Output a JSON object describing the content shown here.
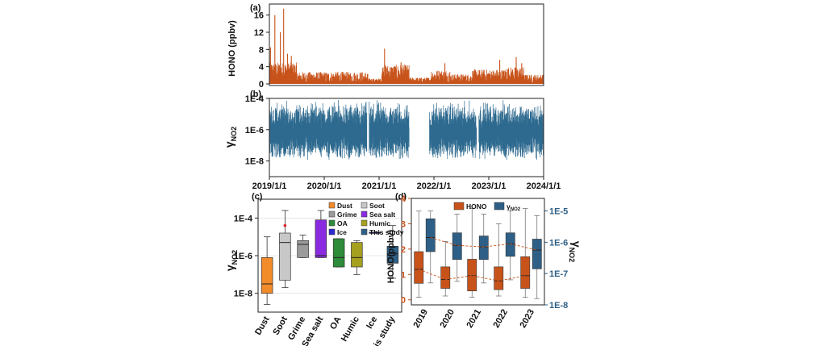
{
  "chart_data": [
    {
      "id": "a",
      "type": "line",
      "panel_label": "(a)",
      "ylabel": "HONO (ppbv)",
      "ylim": [
        0,
        18
      ],
      "yticks": [
        "0",
        "4",
        "8",
        "12",
        "16"
      ],
      "ytick_values": [
        0,
        4,
        8,
        12,
        16
      ],
      "x_range": [
        2019,
        2024
      ],
      "color": "#c8531a",
      "segments": [
        {
          "from": 2019.0,
          "to": 2019.5,
          "mean": 2.4,
          "amp": 2.0
        },
        {
          "from": 2019.5,
          "to": 2020.0,
          "mean": 1.1,
          "amp": 1.3
        },
        {
          "from": 2020.0,
          "to": 2020.8,
          "mean": 1.0,
          "amp": 1.4
        },
        {
          "from": 2020.8,
          "to": 2021.05,
          "mean": 0.6,
          "amp": 0.5
        },
        {
          "from": 2021.05,
          "to": 2021.55,
          "mean": 1.9,
          "amp": 2.0
        },
        {
          "from": 2021.55,
          "to": 2021.95,
          "mean": 0.7,
          "amp": 0.6
        },
        {
          "from": 2021.95,
          "to": 2022.3,
          "mean": 1.3,
          "amp": 1.5
        },
        {
          "from": 2022.3,
          "to": 2022.7,
          "mean": 1.0,
          "amp": 1.0
        },
        {
          "from": 2022.7,
          "to": 2023.3,
          "mean": 1.3,
          "amp": 1.6
        },
        {
          "from": 2023.3,
          "to": 2023.65,
          "mean": 1.6,
          "amp": 1.8
        },
        {
          "from": 2023.65,
          "to": 2024.0,
          "mean": 0.9,
          "amp": 1.0
        }
      ],
      "peaks": [
        {
          "x": 2019.02,
          "y": 8.5
        },
        {
          "x": 2019.1,
          "y": 16.0
        },
        {
          "x": 2019.2,
          "y": 12.0
        },
        {
          "x": 2019.26,
          "y": 17.5
        },
        {
          "x": 2019.33,
          "y": 7.0
        },
        {
          "x": 2019.4,
          "y": 6.5
        },
        {
          "x": 2021.1,
          "y": 8.2
        },
        {
          "x": 2021.4,
          "y": 5.0
        },
        {
          "x": 2022.2,
          "y": 4.8
        },
        {
          "x": 2023.2,
          "y": 5.6
        },
        {
          "x": 2023.5,
          "y": 6.2
        },
        {
          "x": 2023.6,
          "y": 4.8
        }
      ]
    },
    {
      "id": "b",
      "type": "line",
      "panel_label": "(b)",
      "ylabel": "γ",
      "ylabel_sub": "NO2",
      "scale": "log",
      "ylim_exp": [
        -9,
        -4
      ],
      "yticks": [
        "1E-4",
        "1E-6",
        "1E-8"
      ],
      "ytick_exps": [
        -4,
        -6,
        -8
      ],
      "x_range": [
        2019,
        2024
      ],
      "xticks": [
        "2019/1/1",
        "2020/1/1",
        "2021/1/1",
        "2022/1/1",
        "2023/1/1",
        "2024/1/1"
      ],
      "xtick_values": [
        2019,
        2020,
        2021,
        2022,
        2023,
        2024
      ],
      "color": "#2e6a8f",
      "coverage": [
        [
          2019.0,
          2020.78
        ],
        [
          2020.82,
          2021.55
        ],
        [
          2021.92,
          2022.78
        ],
        [
          2022.82,
          2024.0
        ]
      ],
      "median_exp": -6.2,
      "spread_exp": 1.1
    },
    {
      "id": "c",
      "type": "box",
      "panel_label": "(c)",
      "ylabel": "γ",
      "ylabel_sub": "NO2",
      "scale": "log",
      "ylim_exp": [
        -9,
        -3
      ],
      "yticks": [
        "1E-4",
        "1E-6",
        "1E-8"
      ],
      "ytick_exps": [
        -4,
        -6,
        -8
      ],
      "categories": [
        "Dust",
        "Soot",
        "Grime",
        "Sea salt",
        "OA",
        "Humic",
        "Ice",
        "This study"
      ],
      "boxes": [
        {
          "name": "Dust",
          "color": "#f28b2a",
          "wlo": -8.6,
          "q1": -8.0,
          "med": -7.5,
          "q3": -6.1,
          "whi": -5.0
        },
        {
          "name": "Soot",
          "color": "#c8c8c8",
          "wlo": -7.7,
          "q1": -7.3,
          "med": -5.3,
          "q3": -4.8,
          "whi": -3.6,
          "outlier": -4.4
        },
        {
          "name": "Grime",
          "color": "#9a9a9a",
          "wlo": -6.1,
          "q1": -6.1,
          "med": -5.4,
          "q3": -5.2,
          "whi": -4.9
        },
        {
          "name": "Sea salt",
          "color": "#8a2be2",
          "wlo": -6.1,
          "q1": -6.1,
          "med": -6.0,
          "q3": -4.1,
          "whi": -3.6
        },
        {
          "name": "OA",
          "color": "#2e8b3a",
          "wlo": -6.6,
          "q1": -6.6,
          "med": -6.1,
          "q3": -5.1,
          "whi": -5.1
        },
        {
          "name": "Humic",
          "color": "#a6a01f",
          "wlo": -7.0,
          "q1": -6.6,
          "med": -6.1,
          "q3": -5.3,
          "whi": -5.2
        },
        {
          "name": "Ice",
          "color": "#2b2bd0",
          "wlo": -4.8,
          "q1": -4.8,
          "med": -4.8,
          "q3": -4.75,
          "whi": -4.75
        },
        {
          "name": "This study",
          "color": "#2e5f86",
          "wlo": -7.2,
          "q1": -6.4,
          "med": -5.9,
          "q3": -5.5,
          "whi": -4.4
        }
      ],
      "legend": [
        {
          "label": "Dust",
          "color": "#f28b2a"
        },
        {
          "label": "Grime",
          "color": "#9a9a9a"
        },
        {
          "label": "OA",
          "color": "#2e8b3a"
        },
        {
          "label": "Ice",
          "color": "#2b2bd0"
        },
        {
          "label": "Soot",
          "color": "#c8c8c8"
        },
        {
          "label": "Sea salt",
          "color": "#8a2be2"
        },
        {
          "label": "Humic",
          "color": "#a6a01f"
        },
        {
          "label": "This study",
          "color": "#2e5f86"
        }
      ]
    },
    {
      "id": "d",
      "type": "box",
      "panel_label": "(d)",
      "ylabel_left": "HONO(ppbv)",
      "ylabel_right": "γ",
      "ylabel_right_sub": "NO2",
      "ylim_left": [
        -0.2,
        4
      ],
      "yticks_left": [
        "0",
        "1",
        "2",
        "3",
        "4"
      ],
      "ytick_left_values": [
        0,
        1,
        2,
        3,
        4
      ],
      "ylim_right_exp": [
        -8,
        -4.6
      ],
      "yticks_right": [
        "1E-5",
        "1E-6",
        "1E-7",
        "1E-8"
      ],
      "ytick_right_exps": [
        -5,
        -6,
        -7,
        -8
      ],
      "categories": [
        "2019",
        "2020",
        "2021",
        "2022",
        "2023"
      ],
      "hono": [
        {
          "wlo": 0.1,
          "q1": 0.65,
          "med": 1.2,
          "q3": 1.9,
          "whi": 3.5
        },
        {
          "wlo": 0.15,
          "q1": 0.45,
          "med": 0.8,
          "q3": 1.3,
          "whi": 2.3
        },
        {
          "wlo": 0.1,
          "q1": 0.35,
          "med": 0.95,
          "q3": 1.6,
          "whi": 3.6
        },
        {
          "wlo": 0.15,
          "q1": 0.4,
          "med": 0.75,
          "q3": 1.3,
          "whi": 3.0
        },
        {
          "wlo": 0.1,
          "q1": 0.45,
          "med": 0.95,
          "q3": 1.7,
          "whi": 3.6
        }
      ],
      "gamma": [
        {
          "wlo": -7.3,
          "q1": -6.3,
          "med": -5.85,
          "q3": -5.25,
          "whi": -5.0
        },
        {
          "wlo": -7.25,
          "q1": -6.55,
          "med": -6.1,
          "q3": -5.7,
          "whi": -5.1
        },
        {
          "wlo": -7.3,
          "q1": -6.55,
          "med": -6.15,
          "q3": -5.8,
          "whi": -5.1
        },
        {
          "wlo": -7.2,
          "q1": -6.45,
          "med": -6.05,
          "q3": -5.7,
          "whi": -5.0
        },
        {
          "wlo": -7.8,
          "q1": -6.85,
          "med": -6.25,
          "q3": -5.9,
          "whi": -5.15
        }
      ],
      "hono_color": "#c8531a",
      "gamma_color": "#2e5f86",
      "legend": [
        {
          "label": "HONO",
          "color": "#c8531a"
        },
        {
          "label": "γ",
          "sub": "NO2",
          "color": "#2e5f86"
        }
      ]
    }
  ]
}
